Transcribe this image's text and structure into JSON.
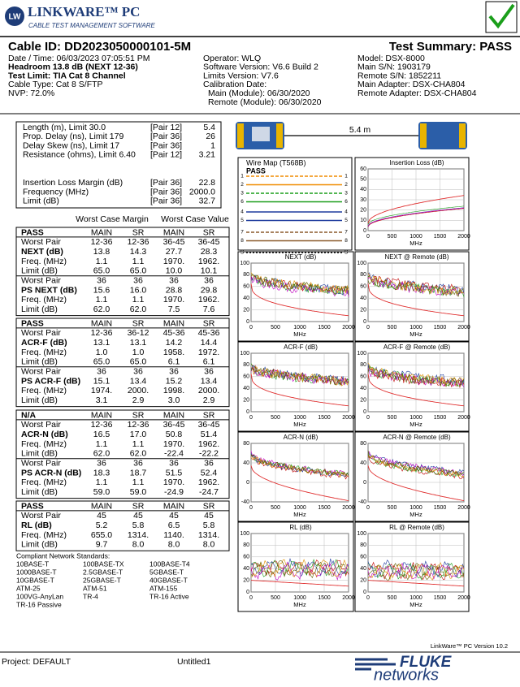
{
  "header": {
    "logo_initials": "LW",
    "product": "LINKWARE™ PC",
    "tagline": "CABLE TEST MANAGEMENT SOFTWARE"
  },
  "info": {
    "cable_id": "Cable ID: DD2023050000101-5M",
    "summary": "Test Summary: PASS",
    "columns": [
      [
        "Date / Time: 06/03/2023  07:05:51 PM",
        "Headroom 13.8 dB (NEXT 12-36)",
        "Test Limit: TIA Cat 8 Channel",
        "Cable Type: Cat 8 S/FTP",
        "NVP: 72.0%"
      ],
      [
        "Operator: WLQ",
        "Software Version: V6.6 Build 2",
        "Limits Version: V7.6",
        "Calibration Date:",
        "Main (Module): 06/30/2020",
        "Remote (Module): 06/30/2020"
      ],
      [
        "Model: DSX-8000",
        "Main S/N: 1903179",
        "Remote S/N: 1852211",
        "Main Adapter: DSX-CHA804",
        "Remote Adapter: DSX-CHA804"
      ]
    ]
  },
  "summary_rows": [
    [
      "Length (m), Limit 30.0",
      "[Pair 12]",
      "5.4"
    ],
    [
      "Prop. Delay (ns), Limit 179",
      "[Pair 36]",
      "26"
    ],
    [
      "Delay Skew (ns), Limit 17",
      "[Pair 36]",
      "1"
    ],
    [
      "Resistance (ohms), Limit 6.40",
      "[Pair 12]",
      "3.21"
    ],
    [
      "Insertion Loss Margin (dB)",
      "[Pair 36]",
      "22.8"
    ],
    [
      "Frequency (MHz)",
      "[Pair 36]",
      "2000.0"
    ],
    [
      "Limit (dB)",
      "[Pair 36]",
      "32.7"
    ]
  ],
  "table_headers": [
    "Worst Case Margin",
    "Worst Case Value"
  ],
  "tables": [
    {
      "rows": [
        [
          "PASS",
          "MAIN",
          "SR",
          "MAIN",
          "SR"
        ],
        [
          "Worst Pair",
          "12-36",
          "12-36",
          "36-45",
          "36-45"
        ],
        [
          "NEXT (dB)",
          "13.8",
          "14.3",
          "27.7",
          "28.3"
        ],
        [
          "Freq. (MHz)",
          "1.1",
          "1.1",
          "1970.",
          "1962."
        ],
        [
          "Limit (dB)",
          "65.0",
          "65.0",
          "10.0",
          "10.1"
        ],
        [
          "Worst Pair",
          "36",
          "36",
          "36",
          "36"
        ],
        [
          "PS NEXT (dB)",
          "15.6",
          "16.0",
          "28.8",
          "29.8"
        ],
        [
          "Freq. (MHz)",
          "1.1",
          "1.1",
          "1970.",
          "1962."
        ],
        [
          "Limit (dB)",
          "62.0",
          "62.0",
          "7.5",
          "7.6"
        ]
      ]
    },
    {
      "rows": [
        [
          "PASS",
          "MAIN",
          "SR",
          "MAIN",
          "SR"
        ],
        [
          "Worst Pair",
          "12-36",
          "36-12",
          "45-36",
          "45-36"
        ],
        [
          "ACR-F (dB)",
          "13.1",
          "13.1",
          "14.2",
          "14.4"
        ],
        [
          "Freq. (MHz)",
          "1.0",
          "1.0",
          "1958.",
          "1972."
        ],
        [
          "Limit (dB)",
          "65.0",
          "65.0",
          "6.1",
          "6.1"
        ],
        [
          "Worst Pair",
          "36",
          "36",
          "36",
          "36"
        ],
        [
          "PS ACR-F (dB)",
          "15.1",
          "13.4",
          "15.2",
          "13.4"
        ],
        [
          "Freq. (MHz)",
          "1974.",
          "2000.",
          "1998.",
          "2000."
        ],
        [
          "Limit (dB)",
          "3.1",
          "2.9",
          "3.0",
          "2.9"
        ]
      ]
    },
    {
      "rows": [
        [
          "N/A",
          "MAIN",
          "SR",
          "MAIN",
          "SR"
        ],
        [
          "Worst Pair",
          "12-36",
          "12-36",
          "36-45",
          "36-45"
        ],
        [
          "ACR-N (dB)",
          "16.5",
          "17.0",
          "50.8",
          "51.4"
        ],
        [
          "Freq. (MHz)",
          "1.1",
          "1.1",
          "1970.",
          "1962."
        ],
        [
          "Limit (dB)",
          "62.0",
          "62.0",
          "-22.4",
          "-22.2"
        ],
        [
          "Worst Pair",
          "36",
          "36",
          "36",
          "36"
        ],
        [
          "PS ACR-N (dB)",
          "18.3",
          "18.7",
          "51.5",
          "52.4"
        ],
        [
          "Freq. (MHz)",
          "1.1",
          "1.1",
          "1970.",
          "1962."
        ],
        [
          "Limit (dB)",
          "59.0",
          "59.0",
          "-24.9",
          "-24.7"
        ]
      ]
    },
    {
      "rows": [
        [
          "PASS",
          "MAIN",
          "SR",
          "MAIN",
          "SR"
        ],
        [
          "Worst Pair",
          "45",
          "45",
          "45",
          "45"
        ],
        [
          "RL (dB)",
          "5.2",
          "5.8",
          "6.5",
          "5.8"
        ],
        [
          "Freq. (MHz)",
          "655.0",
          "1314.",
          "1140.",
          "1314."
        ],
        [
          "Limit (dB)",
          "9.7",
          "8.0",
          "8.0",
          "8.0"
        ]
      ]
    }
  ],
  "standards": {
    "title": "Compliant Network Standards:",
    "items": [
      "10BASE-T",
      "100BASE-TX",
      "100BASE-T4",
      "1000BASE-T",
      "2.5GBASE-T",
      "5GBASE-T",
      "10GBASE-T",
      "25GBASE-T",
      "40GBASE-T",
      "ATM-25",
      "ATM-51",
      "ATM-155",
      "100VG-AnyLan",
      "TR-4",
      "TR-16 Active",
      "TR-16 Passive"
    ]
  },
  "cable_length": "5.4 m",
  "wire_map": {
    "title": "Wire Map (T568B)",
    "result": "PASS",
    "pins": [
      "1",
      "2",
      "3",
      "6",
      "4",
      "5",
      "7",
      "8",
      "S"
    ]
  },
  "graphs": [
    {
      "title": "Insertion Loss (dB)",
      "xlabel": "MHz",
      "xlim": [
        0,
        2000
      ],
      "xticks": [
        0,
        500,
        1000,
        1500,
        2000
      ],
      "ylim": [
        0,
        60
      ],
      "yticks": [
        0,
        10,
        20,
        30,
        40,
        50,
        60
      ]
    },
    {
      "title": "NEXT (dB)",
      "xlabel": "MHz",
      "xlim": [
        0,
        2000
      ],
      "xticks": [
        0,
        500,
        1000,
        1500,
        2000
      ],
      "ylim": [
        0,
        100
      ],
      "yticks": [
        0,
        20,
        40,
        60,
        80,
        100
      ]
    },
    {
      "title": "NEXT @ Remote (dB)",
      "xlabel": "MHz",
      "xlim": [
        0,
        2000
      ],
      "xticks": [
        0,
        500,
        1000,
        1500,
        2000
      ],
      "ylim": [
        0,
        100
      ],
      "yticks": [
        0,
        20,
        40,
        60,
        80,
        100
      ]
    },
    {
      "title": "ACR-F (dB)",
      "xlabel": "MHz",
      "xlim": [
        0,
        2000
      ],
      "xticks": [
        0,
        500,
        1000,
        1500,
        2000
      ],
      "ylim": [
        0,
        100
      ],
      "yticks": [
        0,
        20,
        40,
        60,
        80,
        100
      ]
    },
    {
      "title": "ACR-F @ Remote (dB)",
      "xlabel": "MHz",
      "xlim": [
        0,
        2000
      ],
      "xticks": [
        0,
        500,
        1000,
        1500,
        2000
      ],
      "ylim": [
        0,
        100
      ],
      "yticks": [
        0,
        20,
        40,
        60,
        80,
        100
      ]
    },
    {
      "title": "ACR-N (dB)",
      "xlabel": "MHz",
      "xlim": [
        0,
        2000
      ],
      "xticks": [
        0,
        500,
        1000,
        1500,
        2000
      ],
      "ylim": [
        -40,
        80
      ],
      "yticks": [
        -40,
        0,
        40,
        80
      ]
    },
    {
      "title": "ACR-N @ Remote (dB)",
      "xlabel": "MHz",
      "xlim": [
        0,
        2000
      ],
      "xticks": [
        0,
        500,
        1000,
        1500,
        2000
      ],
      "ylim": [
        -40,
        80
      ],
      "yticks": [
        -40,
        0,
        40,
        80
      ]
    },
    {
      "title": "RL (dB)",
      "xlabel": "MHz",
      "xlim": [
        0,
        2000
      ],
      "xticks": [
        0,
        500,
        1000,
        1500,
        2000
      ],
      "ylim": [
        0,
        100
      ],
      "yticks": [
        0,
        20,
        40,
        60,
        80,
        100
      ]
    },
    {
      "title": "RL @ Remote (dB)",
      "xlabel": "MHz",
      "xlim": [
        0,
        2000
      ],
      "xticks": [
        0,
        500,
        1000,
        1500,
        2000
      ],
      "ylim": [
        0,
        100
      ],
      "yticks": [
        0,
        20,
        40,
        60,
        80,
        100
      ]
    }
  ],
  "footer": {
    "version": "LinkWare™ PC Version 10.2",
    "project": "Project: DEFAULT",
    "file": "Untitled1",
    "brand": "FLUKE",
    "brand_sub": "networks"
  }
}
